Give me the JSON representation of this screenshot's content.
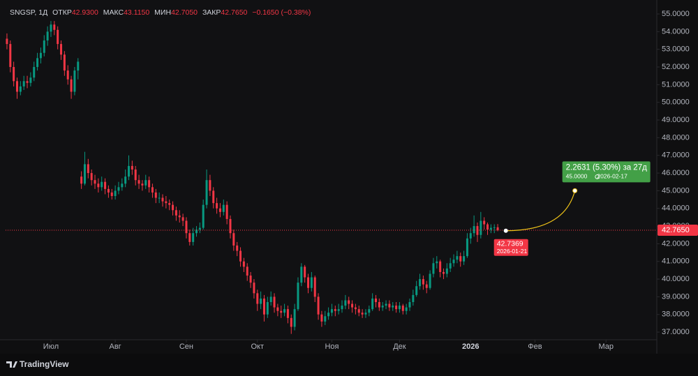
{
  "chart_data": {
    "type": "candlestick",
    "header": {
      "symbol": "SNGSP, 1Д",
      "open_label": "ОТКР",
      "open": "42.9300",
      "high_label": "МАКС",
      "high": "43.1150",
      "low_label": "МИН",
      "low": "42.7050",
      "close_label": "ЗАКР",
      "close": "42.7650",
      "change": "−0.1650 (−0.38%)"
    },
    "up_color": "#089981",
    "down_color": "#f23645",
    "open": [
      53.6,
      53.3,
      52.0,
      51.2,
      50.6,
      50.9,
      51.2,
      51.1,
      51.4,
      52.0,
      52.5,
      52.8,
      53.5,
      54.0,
      54.4,
      54.1,
      53.3,
      52.7,
      51.8,
      51.3,
      50.6,
      51.8,
      45.8,
      45.4,
      46.5,
      46.0,
      45.6,
      45.4,
      45.2,
      45.5,
      45.1,
      44.9,
      44.7,
      45.0,
      45.2,
      45.4,
      45.8,
      46.4,
      46.2,
      45.6,
      45.4,
      45.3,
      45.6,
      45.2,
      44.9,
      44.6,
      44.6,
      44.4,
      44.3,
      44.2,
      43.9,
      43.6,
      43.5,
      43.3,
      42.6,
      42.1,
      42.6,
      42.8,
      42.9,
      44.2,
      45.6,
      45.0,
      44.3,
      44.0,
      43.8,
      44.2,
      43.4,
      42.6,
      41.9,
      41.6,
      41.0,
      40.7,
      40.2,
      39.8,
      39.2,
      38.6,
      38.9,
      38.0,
      38.7,
      39.0,
      38.4,
      38.2,
      38.1,
      38.3,
      37.8,
      37.3,
      38.3,
      39.8,
      40.7,
      40.1,
      39.5,
      40.1,
      39.0,
      38.0,
      37.6,
      37.9,
      38.1,
      38.3,
      38.2,
      38.3,
      38.5,
      38.8,
      38.6,
      38.4,
      38.3,
      38.1,
      38.0,
      38.1,
      38.3,
      38.9,
      38.7,
      38.4,
      38.5,
      38.6,
      38.4,
      38.5,
      38.3,
      38.5,
      38.2,
      38.4,
      38.7,
      39.1,
      39.6,
      40.0,
      39.7,
      39.5,
      40.3,
      40.9,
      41.0,
      40.4,
      40.3,
      40.6,
      40.9,
      41.1,
      41.3,
      41.0,
      41.3,
      42.3,
      42.6,
      43.0,
      42.5,
      43.3,
      43.1,
      42.8,
      42.9,
      42.93
    ],
    "high": [
      53.9,
      53.5,
      52.3,
      51.4,
      51.2,
      51.5,
      51.5,
      51.7,
      52.3,
      52.8,
      53.1,
      53.8,
      54.3,
      54.6,
      54.6,
      54.3,
      53.5,
      52.9,
      52.1,
      51.5,
      52.0,
      52.5,
      46.1,
      47.2,
      46.8,
      46.2,
      45.9,
      45.7,
      45.8,
      45.7,
      45.3,
      45.1,
      45.3,
      45.5,
      45.7,
      46.2,
      47.0,
      46.7,
      46.4,
      45.9,
      45.6,
      45.9,
      45.8,
      45.4,
      45.1,
      44.9,
      44.8,
      44.7,
      44.5,
      44.4,
      44.1,
      43.9,
      43.7,
      43.5,
      42.8,
      42.9,
      43.0,
      43.2,
      44.5,
      46.2,
      45.9,
      45.2,
      44.6,
      44.3,
      44.5,
      44.4,
      43.6,
      42.8,
      42.1,
      41.8,
      41.2,
      40.9,
      40.4,
      40.0,
      39.4,
      39.3,
      39.1,
      39.0,
      39.3,
      39.2,
      38.6,
      38.5,
      38.6,
      38.5,
      38.0,
      38.6,
      40.1,
      40.9,
      40.8,
      40.3,
      40.4,
      40.2,
      39.2,
      38.2,
      38.2,
      38.4,
      38.6,
      38.5,
      38.6,
      38.8,
      39.1,
      39.0,
      38.8,
      38.6,
      38.5,
      38.3,
      38.3,
      38.5,
      39.2,
      39.1,
      38.9,
      38.7,
      38.8,
      38.8,
      38.7,
      38.7,
      38.7,
      38.6,
      38.6,
      38.9,
      39.4,
      39.9,
      40.3,
      40.2,
      39.9,
      40.5,
      41.2,
      41.3,
      41.1,
      40.6,
      40.9,
      41.2,
      41.4,
      41.6,
      41.5,
      41.6,
      42.6,
      42.9,
      43.6,
      43.2,
      43.8,
      43.5,
      43.2,
      43.1,
      43.1,
      43.115
    ],
    "low": [
      53.0,
      51.7,
      50.9,
      50.2,
      50.4,
      50.7,
      50.8,
      50.9,
      51.2,
      51.8,
      52.2,
      52.6,
      53.2,
      53.7,
      53.8,
      53.0,
      52.4,
      51.5,
      51.0,
      50.2,
      50.4,
      51.3,
      45.1,
      45.3,
      45.7,
      45.3,
      45.1,
      44.9,
      45.0,
      44.8,
      44.6,
      44.5,
      44.5,
      44.8,
      45.0,
      45.2,
      45.6,
      45.9,
      45.3,
      45.1,
      45.0,
      45.1,
      44.9,
      44.6,
      44.3,
      44.3,
      44.1,
      44.0,
      43.9,
      43.6,
      43.3,
      43.2,
      43.0,
      42.3,
      41.9,
      41.9,
      42.4,
      42.6,
      42.8,
      44.0,
      44.7,
      44.0,
      43.7,
      43.5,
      43.6,
      43.1,
      42.3,
      41.6,
      41.3,
      40.7,
      40.4,
      39.9,
      39.5,
      38.9,
      38.2,
      38.3,
      37.6,
      37.8,
      38.5,
      38.1,
      37.9,
      37.8,
      37.9,
      37.5,
      36.9,
      37.1,
      38.2,
      39.6,
      39.8,
      39.2,
      39.3,
      38.7,
      37.7,
      37.3,
      37.4,
      37.7,
      37.9,
      37.9,
      38.0,
      38.1,
      38.3,
      38.3,
      38.1,
      38.0,
      37.9,
      37.8,
      37.8,
      37.9,
      38.2,
      38.4,
      38.2,
      38.2,
      38.3,
      38.2,
      38.2,
      38.1,
      38.1,
      38.0,
      38.0,
      38.2,
      38.5,
      39.0,
      39.4,
      39.4,
      39.2,
      39.4,
      40.1,
      40.6,
      40.1,
      40.0,
      40.1,
      40.4,
      40.7,
      40.9,
      40.7,
      40.8,
      41.2,
      42.0,
      42.4,
      42.1,
      42.3,
      42.8,
      42.5,
      42.6,
      42.6,
      42.705
    ],
    "close": [
      53.3,
      52.0,
      51.2,
      50.6,
      50.9,
      51.2,
      51.1,
      51.4,
      52.0,
      52.5,
      52.8,
      53.5,
      54.0,
      54.4,
      54.1,
      53.3,
      52.7,
      51.8,
      51.3,
      50.6,
      51.8,
      52.3,
      45.4,
      46.5,
      46.0,
      45.6,
      45.4,
      45.2,
      45.5,
      45.1,
      44.9,
      44.7,
      45.0,
      45.2,
      45.4,
      45.8,
      46.4,
      46.2,
      45.6,
      45.4,
      45.3,
      45.6,
      45.2,
      44.9,
      44.6,
      44.6,
      44.4,
      44.3,
      44.2,
      43.9,
      43.6,
      43.5,
      43.3,
      42.6,
      42.1,
      42.6,
      42.8,
      42.9,
      44.2,
      45.6,
      45.0,
      44.3,
      44.0,
      43.8,
      44.2,
      43.4,
      42.6,
      41.9,
      41.6,
      41.0,
      40.7,
      40.2,
      39.8,
      39.2,
      38.6,
      38.9,
      38.0,
      38.7,
      39.0,
      38.4,
      38.2,
      38.1,
      38.3,
      37.8,
      37.3,
      38.3,
      39.8,
      40.7,
      40.1,
      39.5,
      40.1,
      39.0,
      38.0,
      37.6,
      37.9,
      38.1,
      38.3,
      38.2,
      38.3,
      38.5,
      38.8,
      38.6,
      38.4,
      38.3,
      38.1,
      38.0,
      38.1,
      38.3,
      38.9,
      38.7,
      38.4,
      38.5,
      38.6,
      38.4,
      38.5,
      38.3,
      38.5,
      38.2,
      38.4,
      38.7,
      39.1,
      39.6,
      40.0,
      39.7,
      39.5,
      40.3,
      40.9,
      41.0,
      40.4,
      40.3,
      40.6,
      40.9,
      41.1,
      41.3,
      41.0,
      41.3,
      42.3,
      42.6,
      43.0,
      42.5,
      43.3,
      43.1,
      42.8,
      42.9,
      42.93,
      42.765
    ],
    "xlim": [
      -0.4,
      191.8
    ],
    "xticks": [
      {
        "value": 13,
        "label": "Июл"
      },
      {
        "value": 32,
        "label": "Авг"
      },
      {
        "value": 53,
        "label": "Сен"
      },
      {
        "value": 74,
        "label": "Окт"
      },
      {
        "value": 96,
        "label": "Ноя"
      },
      {
        "value": 116,
        "label": "Дек"
      },
      {
        "value": 137,
        "label": "2026"
      },
      {
        "value": 156,
        "label": "Фев"
      },
      {
        "value": 177,
        "label": "Мар"
      }
    ],
    "ylim": [
      36.57,
      55.79
    ],
    "yticks": [
      {
        "value": 37,
        "label": "37.0000"
      },
      {
        "value": 38,
        "label": "38.0000"
      },
      {
        "value": 39,
        "label": "39.0000"
      },
      {
        "value": 40,
        "label": "40.0000"
      },
      {
        "value": 41,
        "label": "41.0000"
      },
      {
        "value": 42,
        "label": "42.0000"
      },
      {
        "value": 43,
        "label": "43.0000"
      },
      {
        "value": 44,
        "label": "44.0000"
      },
      {
        "value": 45,
        "label": "45.0000"
      },
      {
        "value": 46,
        "label": "46.0000"
      },
      {
        "value": 47,
        "label": "47.0000"
      },
      {
        "value": 48,
        "label": "48.0000"
      },
      {
        "value": 49,
        "label": "49.0000"
      },
      {
        "value": 50,
        "label": "50.0000"
      },
      {
        "value": 51,
        "label": "51.0000"
      },
      {
        "value": 52,
        "label": "52.0000"
      },
      {
        "value": 53,
        "label": "53.0000"
      },
      {
        "value": 54,
        "label": "54.0000"
      },
      {
        "value": 55,
        "label": "55.0000"
      }
    ],
    "grid": false,
    "last_price": {
      "value": 42.765,
      "label": "42.7650"
    },
    "projection": {
      "start": {
        "x": 147.4,
        "value": 42.7369,
        "date": "2026-01-21"
      },
      "end": {
        "x": 167.8,
        "value": 45,
        "label": "45.0000",
        "date": "2026-02-17"
      },
      "change": "2.2631 (5.30%) за 27д",
      "line_color": "#f0c419",
      "up_color": "#43a047",
      "start_color": "#f23645"
    },
    "brand": "TradingView"
  }
}
